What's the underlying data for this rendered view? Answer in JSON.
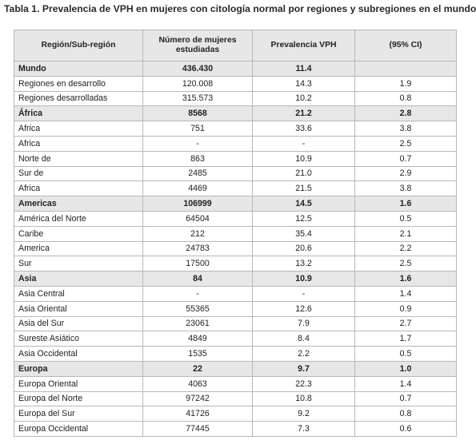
{
  "caption": "Tabla 1. Prevalencia de VPH en mujeres con citología normal por regiones y subregiones en el mundo",
  "headers": [
    "Región/Sub-región",
    "Número de mujeres estudiadas",
    "Prevalencia VPH",
    "(95% CI)"
  ],
  "rows": [
    {
      "group": true,
      "cells": [
        "Mundo",
        "436.430",
        "11.4",
        ""
      ]
    },
    {
      "group": false,
      "cells": [
        "Regiones en desarrollo",
        "120.008",
        "14.3",
        "1.9"
      ]
    },
    {
      "group": false,
      "cells": [
        "Regiones desarrolladas",
        "315.573",
        "10.2",
        "0.8"
      ]
    },
    {
      "group": true,
      "cells": [
        "África",
        "8568",
        "21.2",
        "2.8"
      ]
    },
    {
      "group": false,
      "cells": [
        "Africa",
        "751",
        "33.6",
        "3.8"
      ]
    },
    {
      "group": false,
      "cells": [
        "Africa",
        "-",
        "-",
        "2.5"
      ]
    },
    {
      "group": false,
      "cells": [
        "Norte de",
        "863",
        "10.9",
        "0.7"
      ]
    },
    {
      "group": false,
      "cells": [
        "Sur de",
        "2485",
        "21.0",
        "2.9"
      ]
    },
    {
      "group": false,
      "cells": [
        "Africa",
        "4469",
        "21.5",
        "3.8"
      ]
    },
    {
      "group": true,
      "cells": [
        "Americas",
        "106999",
        "14.5",
        "1.6"
      ]
    },
    {
      "group": false,
      "cells": [
        "América del Norte",
        "64504",
        "12.5",
        "0.5"
      ]
    },
    {
      "group": false,
      "cells": [
        "Caribe",
        "212",
        "35.4",
        "2.1"
      ]
    },
    {
      "group": false,
      "cells": [
        "America",
        "24783",
        "20.6",
        "2.2"
      ]
    },
    {
      "group": false,
      "cells": [
        "Sur",
        "17500",
        "13.2",
        "2.5"
      ]
    },
    {
      "group": true,
      "cells": [
        "Asia",
        "84",
        "10.9",
        "1.6"
      ]
    },
    {
      "group": false,
      "cells": [
        "Asia Central",
        "-",
        "-",
        "1.4"
      ]
    },
    {
      "group": false,
      "cells": [
        "Asia Oriental",
        "55365",
        "12.6",
        "0.9"
      ]
    },
    {
      "group": false,
      "cells": [
        "Asia del Sur",
        "23061",
        "7.9",
        "2.7"
      ]
    },
    {
      "group": false,
      "cells": [
        "Sureste Asiático",
        "4849",
        "8.4",
        "1.7"
      ]
    },
    {
      "group": false,
      "cells": [
        "Asia Occidental",
        "1535",
        "2.2",
        "0.5"
      ]
    },
    {
      "group": true,
      "cells": [
        "Europa",
        "22",
        "9.7",
        "1.0"
      ]
    },
    {
      "group": false,
      "cells": [
        "Europa Oriental",
        "4063",
        "22.3",
        "1.4"
      ]
    },
    {
      "group": false,
      "cells": [
        "Europa del Norte",
        "97242",
        "10.8",
        "0.7"
      ]
    },
    {
      "group": false,
      "cells": [
        "Europa del Sur",
        "41726",
        "9.2",
        "0.8"
      ]
    },
    {
      "group": false,
      "cells": [
        "Europa Occidental",
        "77445",
        "7.3",
        "0.6"
      ]
    }
  ]
}
